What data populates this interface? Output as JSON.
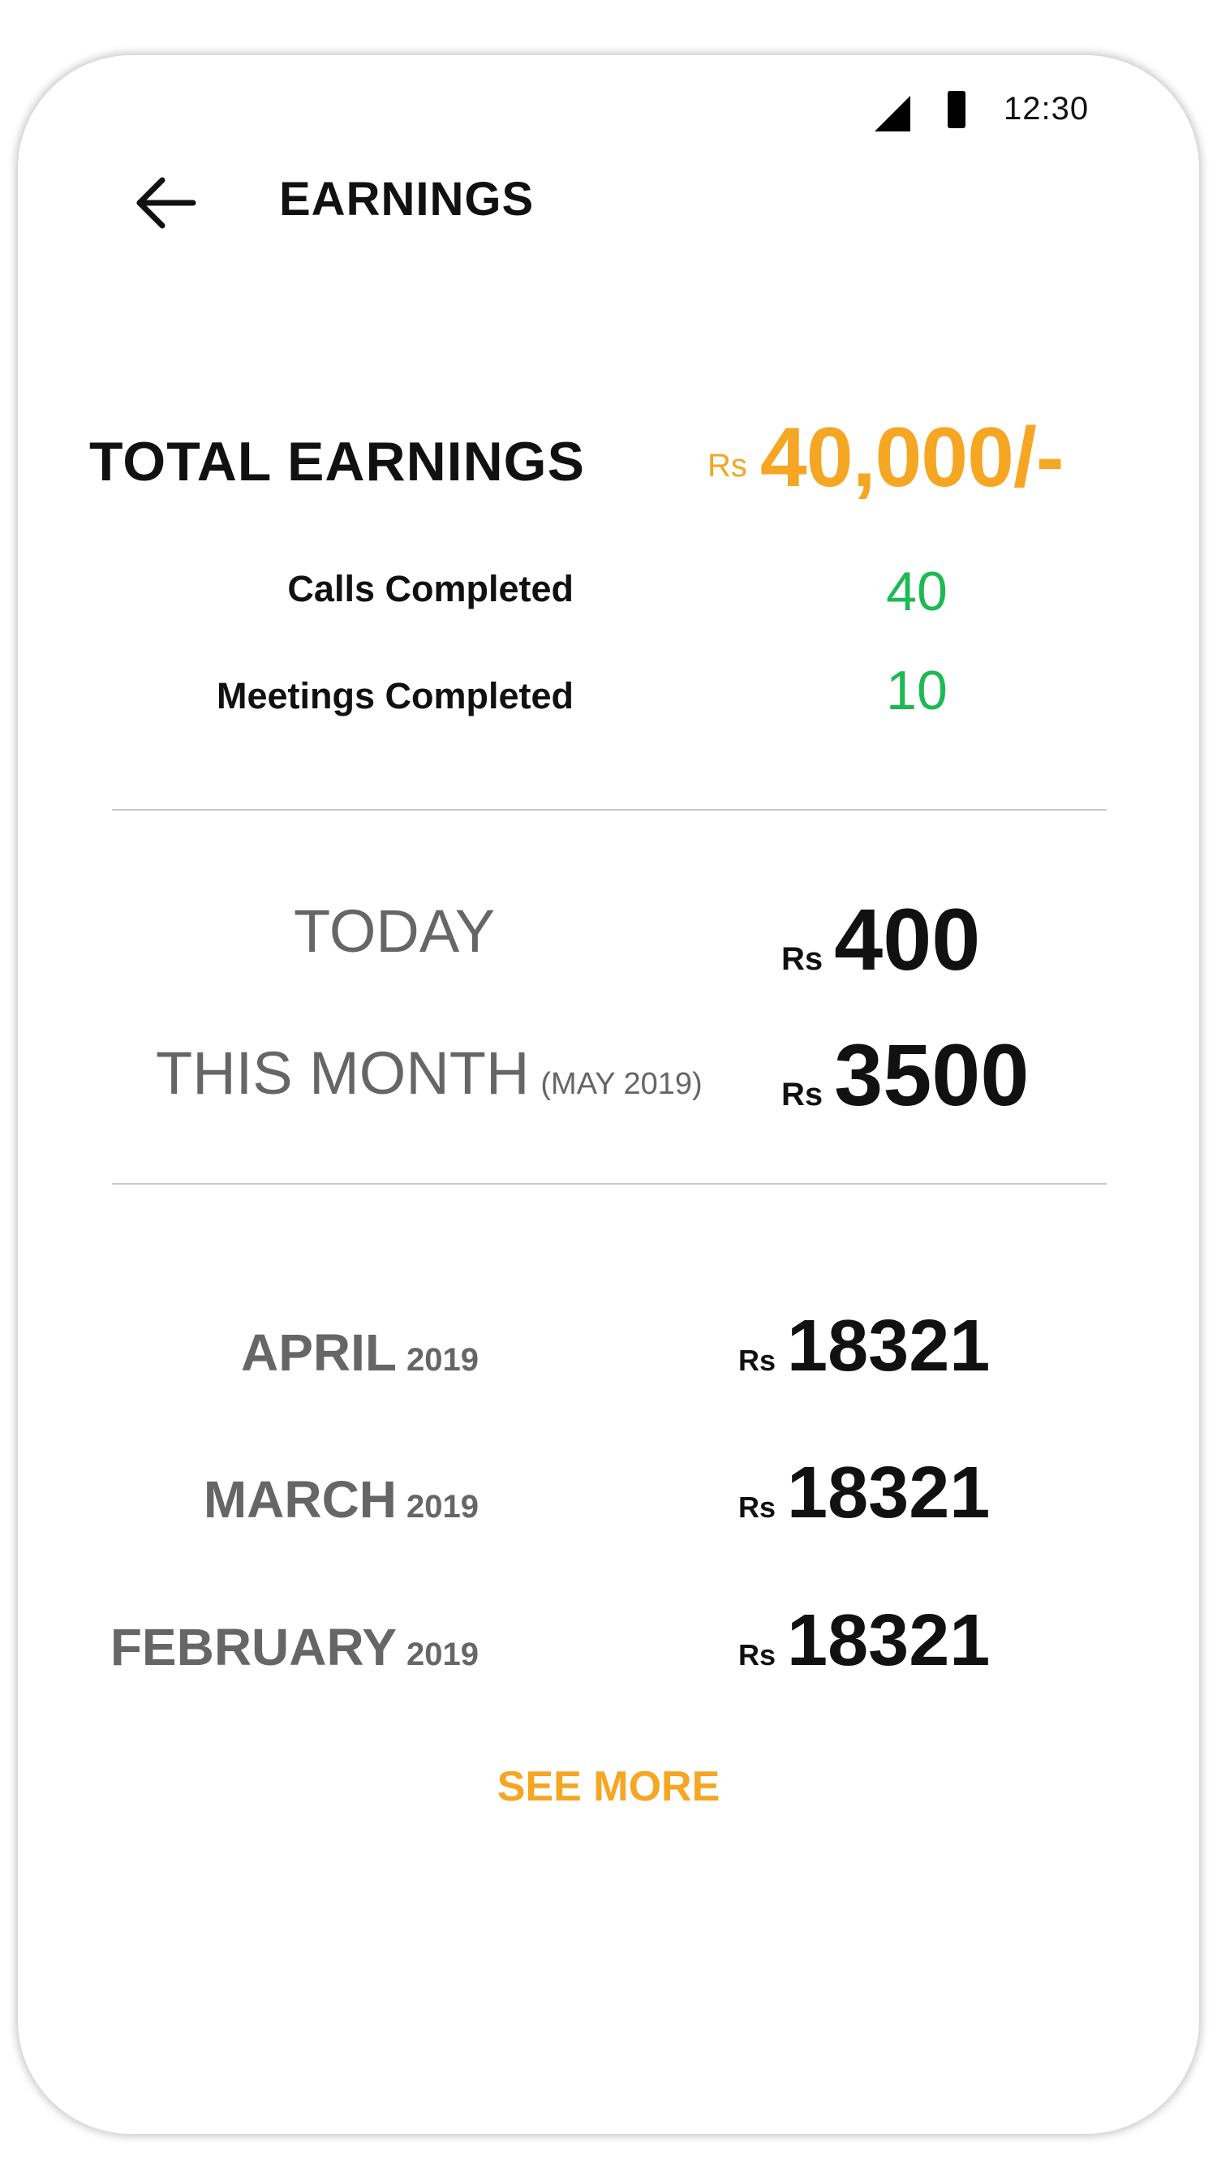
{
  "status_bar": {
    "time": "12:30",
    "signal_icon": "cellular-signal-icon",
    "battery_icon": "battery-icon"
  },
  "header": {
    "back_icon": "arrow-left-icon",
    "title": "EARNINGS"
  },
  "summary": {
    "total_label": "TOTAL EARNINGS",
    "total_currency": "Rs",
    "total_amount": "40,000/-",
    "stats": [
      {
        "label": "Calls Completed",
        "value": "40"
      },
      {
        "label": "Meetings Completed",
        "value": "10"
      }
    ]
  },
  "current_period": {
    "today": {
      "label": "TODAY",
      "currency": "Rs",
      "amount": "400"
    },
    "this_month": {
      "label": "THIS MONTH",
      "sub_label": "(MAY 2019)",
      "currency": "Rs",
      "amount": "3500"
    }
  },
  "history": [
    {
      "month": "APRIL",
      "year": "2019",
      "currency": "Rs",
      "amount": "18321"
    },
    {
      "month": "MARCH",
      "year": "2019",
      "currency": "Rs",
      "amount": "18321"
    },
    {
      "month": "FEBRUARY",
      "year": "2019",
      "currency": "Rs",
      "amount": "18321"
    }
  ],
  "see_more_label": "SEE MORE",
  "colors": {
    "accent": "#F5A623",
    "positive": "#1DB954",
    "label_gray": "#666666",
    "text": "#111111"
  }
}
